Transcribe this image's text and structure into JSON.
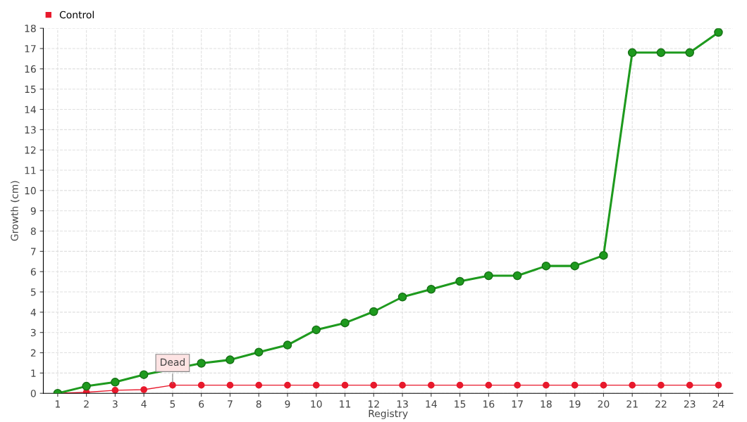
{
  "chart_data": {
    "type": "line",
    "xlabel": "Registry",
    "ylabel": "Growth (cm)",
    "categories": [
      "1",
      "2",
      "3",
      "4",
      "5",
      "6",
      "7",
      "8",
      "9",
      "10",
      "11",
      "12",
      "13",
      "14",
      "15",
      "16",
      "17",
      "18",
      "19",
      "20",
      "21",
      "22",
      "23",
      "24"
    ],
    "series": [
      {
        "color": "#1e9a1e",
        "values": [
          0,
          0.35,
          0.55,
          0.92,
          null,
          1.48,
          1.65,
          2.03,
          2.38,
          3.13,
          3.47,
          4.03,
          4.75,
          5.13,
          5.52,
          5.8,
          5.8,
          6.28,
          6.28,
          6.8,
          16.8,
          16.8,
          16.8,
          17.8
        ]
      },
      {
        "name": "Control",
        "color": "#e8192c",
        "values": [
          0,
          0.05,
          0.15,
          0.18,
          0.4,
          0.4,
          0.4,
          0.4,
          0.4,
          0.4,
          0.4,
          0.4,
          0.4,
          0.4,
          0.4,
          0.4,
          0.4,
          0.4,
          0.4,
          0.4,
          0.4,
          0.4,
          0.4,
          0.4
        ]
      }
    ],
    "annotations": [
      {
        "text": "Dead",
        "x": "5",
        "y": 0.4
      }
    ],
    "ylim": [
      0,
      18
    ],
    "yticks": [
      0,
      1,
      2,
      3,
      4,
      5,
      6,
      7,
      8,
      9,
      10,
      11,
      12,
      13,
      14,
      15,
      16,
      17,
      18
    ],
    "grid": true,
    "legend": "top left",
    "marker": "circle",
    "line_style": "solid"
  }
}
